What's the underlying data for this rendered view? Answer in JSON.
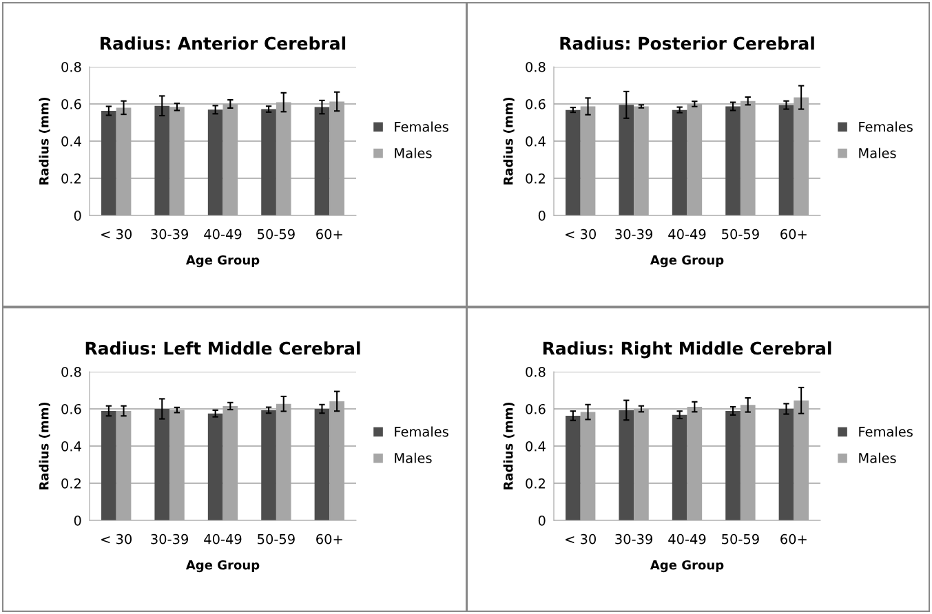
{
  "chart_data": [
    {
      "type": "bar",
      "title": "Radius: Anterior Cerebral",
      "xlabel": "Age Group",
      "ylabel": "Radius (mm)",
      "categories": [
        "< 30",
        "30-39",
        "40-49",
        "50-59",
        "60+"
      ],
      "ylim": [
        0,
        0.8
      ],
      "yticks": [
        0,
        0.2,
        0.4,
        0.6,
        0.8
      ],
      "grid": "y",
      "legend": "right",
      "series": [
        {
          "name": "Females",
          "color": "#4d4d4d",
          "values": [
            0.563,
            0.59,
            0.569,
            0.572,
            0.583
          ],
          "errors": [
            0.024,
            0.053,
            0.022,
            0.016,
            0.036
          ]
        },
        {
          "name": "Males",
          "color": "#a6a6a6",
          "values": [
            0.58,
            0.584,
            0.6,
            0.609,
            0.613
          ],
          "errors": [
            0.036,
            0.019,
            0.022,
            0.051,
            0.051
          ]
        }
      ]
    },
    {
      "type": "bar",
      "title": "Radius: Posterior Cerebral",
      "xlabel": "Age Group",
      "ylabel": "Radius (mm)",
      "categories": [
        "< 30",
        "30-39",
        "40-49",
        "50-59",
        "60+"
      ],
      "ylim": [
        0,
        0.8
      ],
      "yticks": [
        0,
        0.2,
        0.4,
        0.6,
        0.8
      ],
      "grid": "y",
      "legend": "right",
      "series": [
        {
          "name": "Females",
          "color": "#4d4d4d",
          "values": [
            0.568,
            0.595,
            0.568,
            0.587,
            0.594
          ],
          "errors": [
            0.013,
            0.072,
            0.015,
            0.022,
            0.022
          ]
        },
        {
          "name": "Males",
          "color": "#a6a6a6",
          "values": [
            0.587,
            0.587,
            0.6,
            0.616,
            0.635
          ],
          "errors": [
            0.045,
            0.008,
            0.014,
            0.021,
            0.063
          ]
        }
      ]
    },
    {
      "type": "bar",
      "title": "Radius: Left Middle Cerebral",
      "xlabel": "Age Group",
      "ylabel": "Radius (mm)",
      "categories": [
        "< 30",
        "30-39",
        "40-49",
        "50-59",
        "60+"
      ],
      "ylim": [
        0,
        0.8
      ],
      "yticks": [
        0,
        0.2,
        0.4,
        0.6,
        0.8
      ],
      "grid": "y",
      "legend": "right",
      "series": [
        {
          "name": "Females",
          "color": "#4d4d4d",
          "values": [
            0.589,
            0.6,
            0.575,
            0.593,
            0.6
          ],
          "errors": [
            0.027,
            0.054,
            0.018,
            0.016,
            0.023
          ]
        },
        {
          "name": "Males",
          "color": "#a6a6a6",
          "values": [
            0.589,
            0.594,
            0.615,
            0.627,
            0.641
          ],
          "errors": [
            0.027,
            0.014,
            0.019,
            0.04,
            0.053
          ]
        }
      ]
    },
    {
      "type": "bar",
      "title": "Radius: Right Middle Cerebral",
      "xlabel": "Age Group",
      "ylabel": "Radius (mm)",
      "categories": [
        "< 30",
        "30-39",
        "40-49",
        "50-59",
        "60+"
      ],
      "ylim": [
        0,
        0.8
      ],
      "yticks": [
        0,
        0.2,
        0.4,
        0.6,
        0.8
      ],
      "grid": "y",
      "legend": "right",
      "series": [
        {
          "name": "Females",
          "color": "#4d4d4d",
          "values": [
            0.563,
            0.593,
            0.568,
            0.589,
            0.6
          ],
          "errors": [
            0.025,
            0.053,
            0.02,
            0.022,
            0.028
          ]
        },
        {
          "name": "Males",
          "color": "#a6a6a6",
          "values": [
            0.583,
            0.6,
            0.611,
            0.621,
            0.645
          ],
          "errors": [
            0.04,
            0.016,
            0.027,
            0.038,
            0.07
          ]
        }
      ]
    }
  ]
}
